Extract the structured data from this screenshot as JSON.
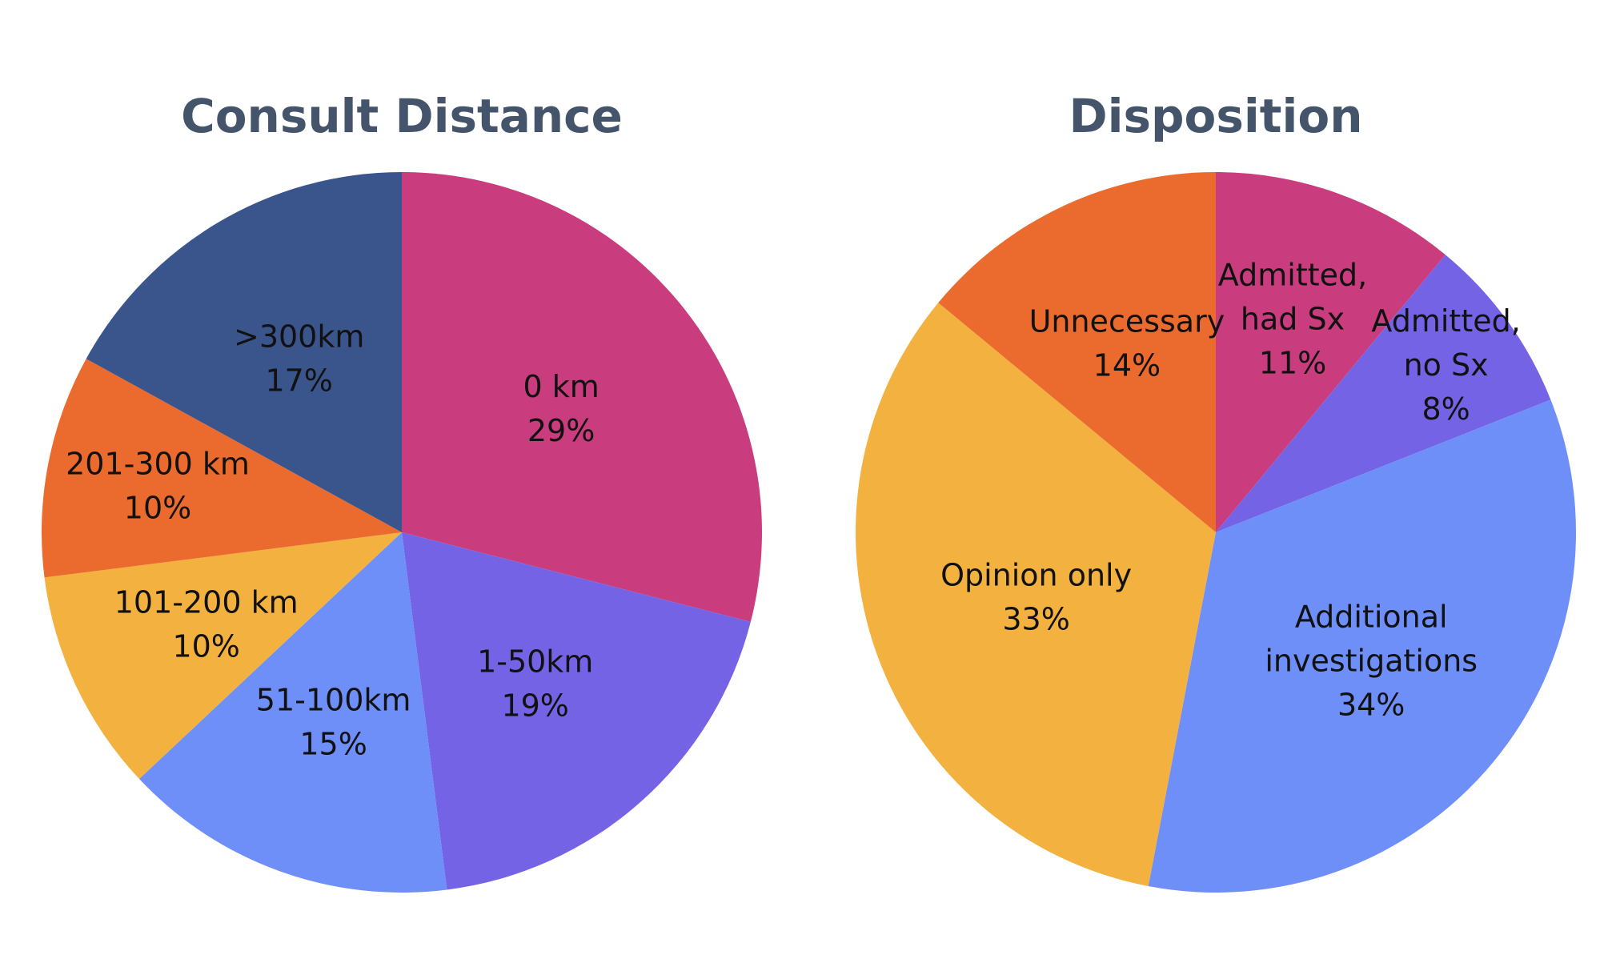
{
  "title_color": "#44546a",
  "chart_data": [
    {
      "type": "pie",
      "title": "Consult Distance",
      "slices": [
        {
          "label_lines": [
            "0 km"
          ],
          "value": 29,
          "value_label": "29%",
          "color": "#c93c7d"
        },
        {
          "label_lines": [
            "1-50km"
          ],
          "value": 19,
          "value_label": "19%",
          "color": "#7563e6"
        },
        {
          "label_lines": [
            "51-100km"
          ],
          "value": 15,
          "value_label": "15%",
          "color": "#6e8ef8"
        },
        {
          "label_lines": [
            "101-200 km"
          ],
          "value": 10,
          "value_label": "10%",
          "color": "#f3b13f"
        },
        {
          "label_lines": [
            "201-300 km"
          ],
          "value": 10,
          "value_label": "10%",
          "color": "#eb6b2e"
        },
        {
          "label_lines": [
            ">300km"
          ],
          "value": 17,
          "value_label": "17%",
          "color": "#3a558c"
        }
      ]
    },
    {
      "type": "pie",
      "title": "Disposition",
      "slices": [
        {
          "label_lines": [
            "Admitted,",
            "had Sx"
          ],
          "value": 11,
          "value_label": "11%",
          "color": "#c93c7d"
        },
        {
          "label_lines": [
            "Admitted,",
            "no Sx"
          ],
          "value": 8,
          "value_label": "8%",
          "color": "#7563e6"
        },
        {
          "label_lines": [
            "Additional",
            "investigations"
          ],
          "value": 34,
          "value_label": "34%",
          "color": "#6e8ef8"
        },
        {
          "label_lines": [
            "Opinion only"
          ],
          "value": 33,
          "value_label": "33%",
          "color": "#f3b13f"
        },
        {
          "label_lines": [
            "Unnecessary"
          ],
          "value": 14,
          "value_label": "14%",
          "color": "#eb6b2e"
        }
      ]
    }
  ]
}
